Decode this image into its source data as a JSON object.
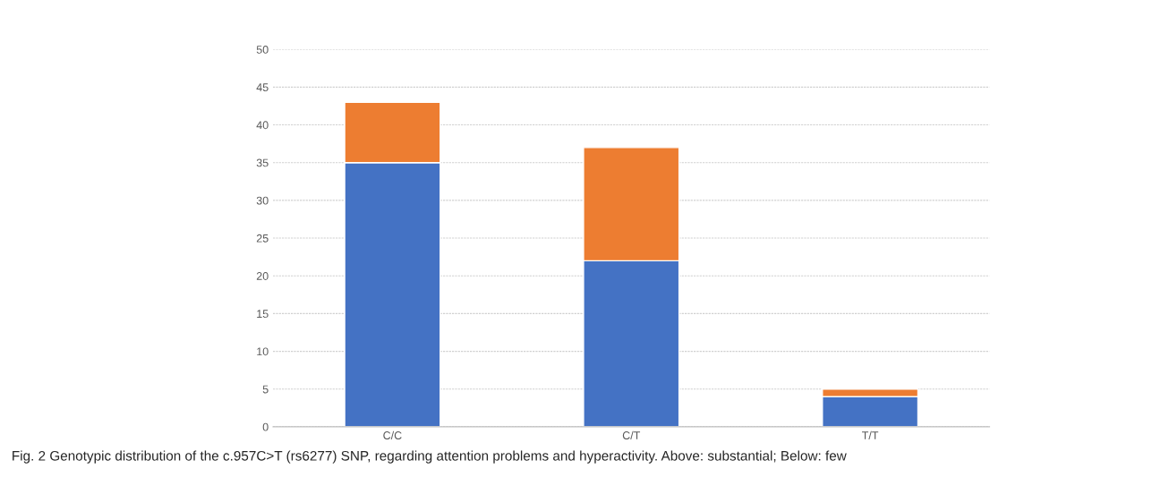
{
  "chart_data": {
    "type": "bar",
    "stacked": true,
    "categories": [
      "C/C",
      "C/T",
      "T/T"
    ],
    "series": [
      {
        "color": "#4472c4",
        "values": [
          35,
          22,
          4
        ]
      },
      {
        "color": "#ed7d31",
        "values": [
          8,
          15,
          1
        ]
      }
    ],
    "ylim": [
      0,
      50
    ],
    "yticks": [
      0,
      5,
      10,
      15,
      20,
      25,
      30,
      35,
      40,
      45,
      50
    ],
    "grid": "y",
    "legend": false,
    "annotations": [
      "Fig. 2 Genotypic distribution of the c.957C>T (rs6277) SNP, regarding attention problems and hyperactivity. Above: substantial; Below: few"
    ]
  }
}
